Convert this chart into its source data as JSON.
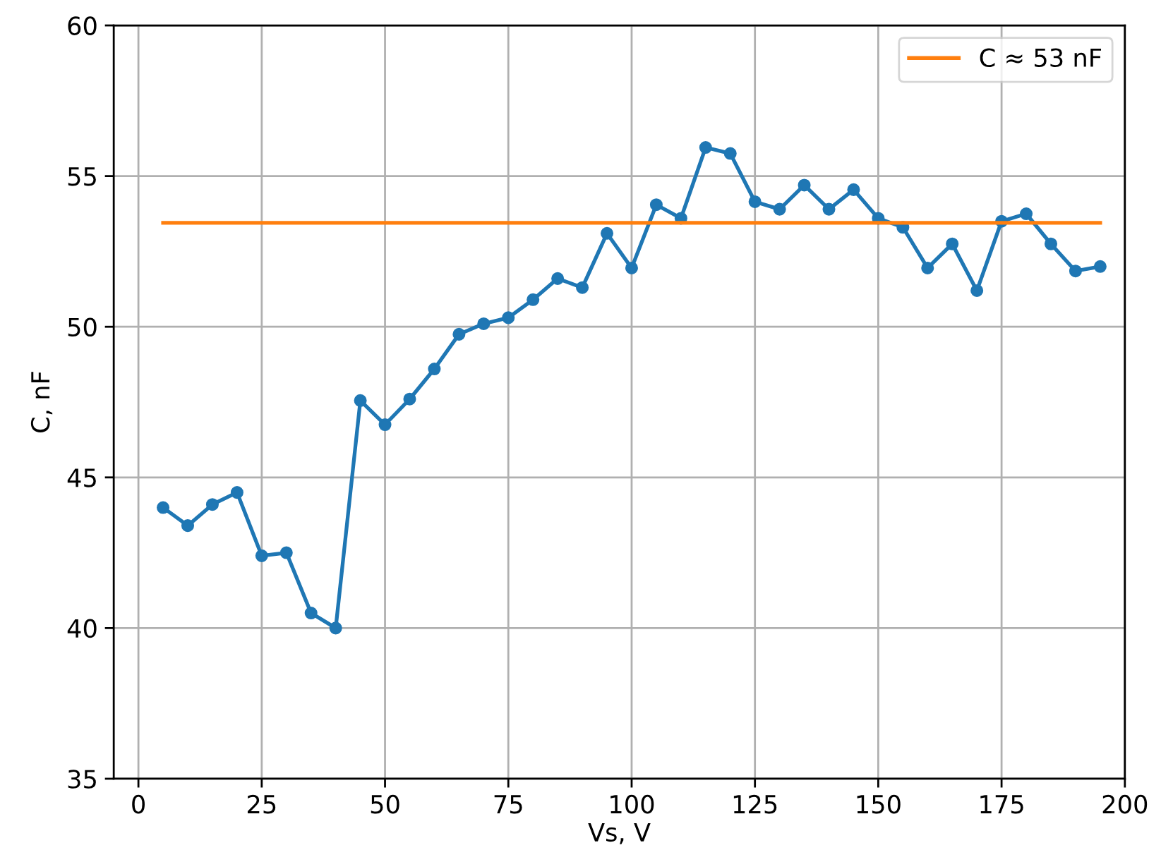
{
  "chart_data": {
    "type": "line",
    "xlabel": "Vs, V",
    "ylabel": "C, nF",
    "xlim": [
      -5,
      200
    ],
    "xticks": [
      0,
      25,
      50,
      75,
      100,
      125,
      150,
      175,
      200
    ],
    "ylim": [
      35,
      60
    ],
    "yticks": [
      35,
      40,
      45,
      50,
      55,
      60
    ],
    "grid": true,
    "legend": "top right",
    "series": [
      {
        "color": "#1f77b4",
        "marker": "circle",
        "x": [
          5,
          10,
          15,
          20,
          25,
          30,
          35,
          40,
          45,
          50,
          55,
          60,
          65,
          70,
          75,
          80,
          85,
          90,
          95,
          100,
          105,
          110,
          115,
          120,
          125,
          130,
          135,
          140,
          145,
          150,
          155,
          160,
          165,
          170,
          175,
          180,
          185,
          190,
          195
        ],
        "values": [
          44.0,
          43.4,
          44.1,
          44.5,
          42.4,
          42.5,
          40.5,
          40.0,
          47.55,
          46.75,
          47.6,
          48.6,
          49.75,
          50.1,
          50.3,
          50.9,
          51.6,
          51.3,
          53.1,
          51.95,
          54.05,
          53.6,
          55.95,
          55.75,
          54.15,
          53.9,
          54.7,
          53.9,
          54.55,
          53.6,
          53.3,
          51.95,
          52.75,
          51.2,
          53.5,
          53.75,
          52.75,
          51.85,
          52.0
        ]
      },
      {
        "name": "C ≈ 53 nF",
        "color": "#ff7f0e",
        "marker": "none",
        "x": [
          5,
          195
        ],
        "values": [
          53.45,
          53.45
        ]
      }
    ]
  }
}
